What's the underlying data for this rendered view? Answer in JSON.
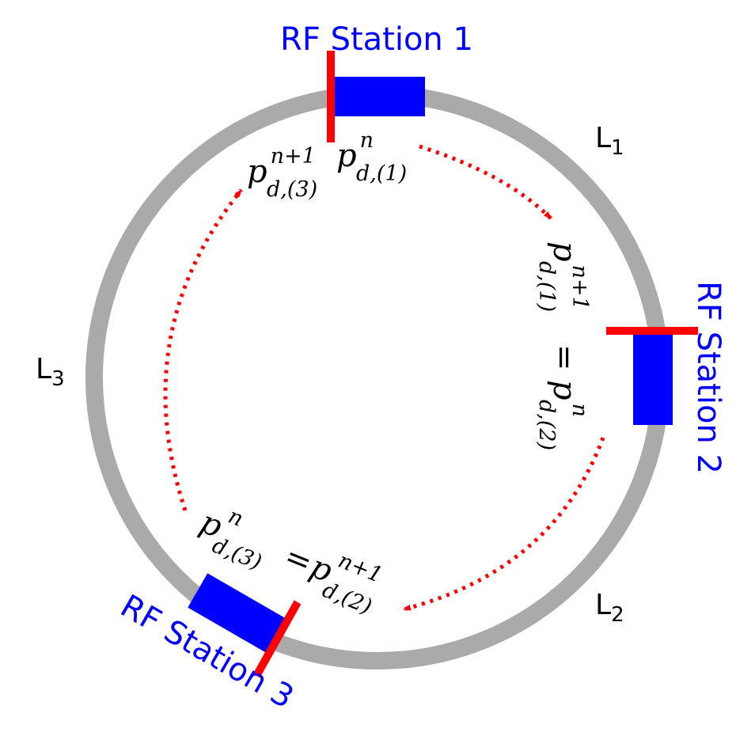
{
  "stations": [
    {
      "label": "RF Station 1"
    },
    {
      "label": "RF Station 2"
    },
    {
      "label": "RF Station 3"
    }
  ],
  "sections": [
    {
      "base": "L",
      "sub": "1"
    },
    {
      "base": "L",
      "sub": "2"
    },
    {
      "base": "L",
      "sub": "3"
    }
  ],
  "momenta": {
    "p_d1_n": {
      "base": "p",
      "sup": "n",
      "sub": "d,(1)"
    },
    "p_d3_n1": {
      "base": "p",
      "sup": "n+1",
      "sub": "d,(3)"
    },
    "p_d1_n1": {
      "base": "p",
      "sup": "n+1",
      "sub": "d,(1)"
    },
    "p_d2_n": {
      "base": "p",
      "sup": "n",
      "sub": "d,(2)"
    },
    "p_d3_n": {
      "base": "p",
      "sup": "n",
      "sub": "d,(3)"
    },
    "p_d2_n1": {
      "base": "p",
      "sup": "n+1",
      "sub": "d,(2)"
    },
    "equals": "="
  },
  "colors": {
    "ring": "#aaaaaa",
    "cavity": "#0000ff",
    "marker": "#ff0000",
    "arrow": "#ff0000",
    "station_text": "#0000ff",
    "text": "#000000"
  }
}
